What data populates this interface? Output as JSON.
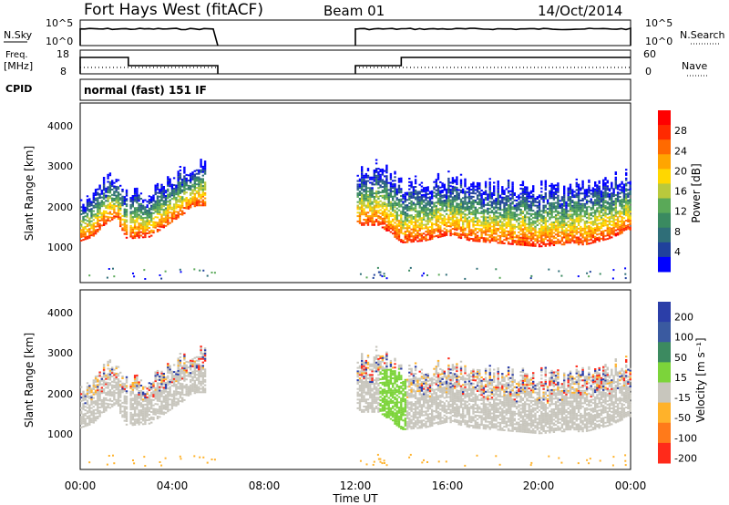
{
  "header": {
    "station": "Fort Hays West (fitACF)",
    "beam": "Beam 01",
    "date": "14/Oct/2014"
  },
  "sky_panel": {
    "left_label": "N.Sky",
    "left_ticks": [
      "10^5",
      "10^0"
    ],
    "right_label": "N.Search",
    "right_ticks": [
      "10^5",
      "10^0"
    ],
    "sky_level": 3.5,
    "search_level": 3.0
  },
  "freq_panel": {
    "left_label_1": "Freq.",
    "left_label_2": "[MHz]",
    "left_ticks": [
      "18",
      "8"
    ],
    "right_label": "Nave",
    "right_ticks": [
      "60",
      "0"
    ]
  },
  "cpid": {
    "label": "CPID",
    "text": "normal (fast) 151 IF"
  },
  "time_axis": {
    "label": "Time UT",
    "ticks": [
      "00:00",
      "04:00",
      "08:00",
      "12:00",
      "16:00",
      "20:00",
      "00:00"
    ],
    "range_hours": [
      0,
      24
    ]
  },
  "colors": {
    "power": [
      "#0000ff",
      "#20419c",
      "#2f6e78",
      "#3a8a60",
      "#5aa958",
      "#b9c93c",
      "#ffd700",
      "#ffa500",
      "#ff6a00",
      "#ff2a00",
      "#ff0000"
    ],
    "velocity_ground": "#c8c6bd",
    "velocity_green": "#7cd43a",
    "velocity_orange": "#ffb22a",
    "velocity_blue": "#2b3ea8",
    "velocity_red": "#ff2a1a"
  },
  "chart_data": [
    {
      "type": "heatmap",
      "panel": "power",
      "ylabel": "Slant Range [km]",
      "yticks": [
        "1000",
        "2000",
        "3000",
        "4000"
      ],
      "ylim": [
        0,
        4600
      ],
      "xlim": [
        0,
        24
      ],
      "colorbar_label": "Power [dB]",
      "colorbar_ticks": [
        "4",
        "8",
        "12",
        "16",
        "20",
        "24",
        "28"
      ],
      "data_gaps_hours": [
        [
          6,
          12
        ]
      ],
      "main_echo_band": {
        "x": [
          0,
          0.5,
          1,
          1.5,
          2,
          3,
          4,
          5,
          12,
          13,
          14,
          15,
          16,
          17,
          18,
          19,
          20,
          21,
          22,
          23,
          24
        ],
        "range_km": [
          1100,
          1200,
          1500,
          1700,
          1150,
          1200,
          1600,
          2000,
          null,
          1500,
          1050,
          1100,
          1250,
          1100,
          1050,
          1000,
          950,
          1000,
          1000,
          1150,
          1400
        ]
      }
    },
    {
      "type": "heatmap",
      "panel": "velocity",
      "ylabel": "Slant Range [km]",
      "yticks": [
        "1000",
        "2000",
        "3000",
        "4000"
      ],
      "ylim": [
        0,
        4600
      ],
      "xlim": [
        0,
        24
      ],
      "colorbar_label": "Velocity [m s⁻¹]",
      "colorbar_ticks": [
        "200",
        "100",
        "50",
        "15",
        "-15",
        "-50",
        "-100",
        "-200"
      ],
      "data_gaps_hours": [
        [
          6,
          12
        ]
      ]
    }
  ]
}
